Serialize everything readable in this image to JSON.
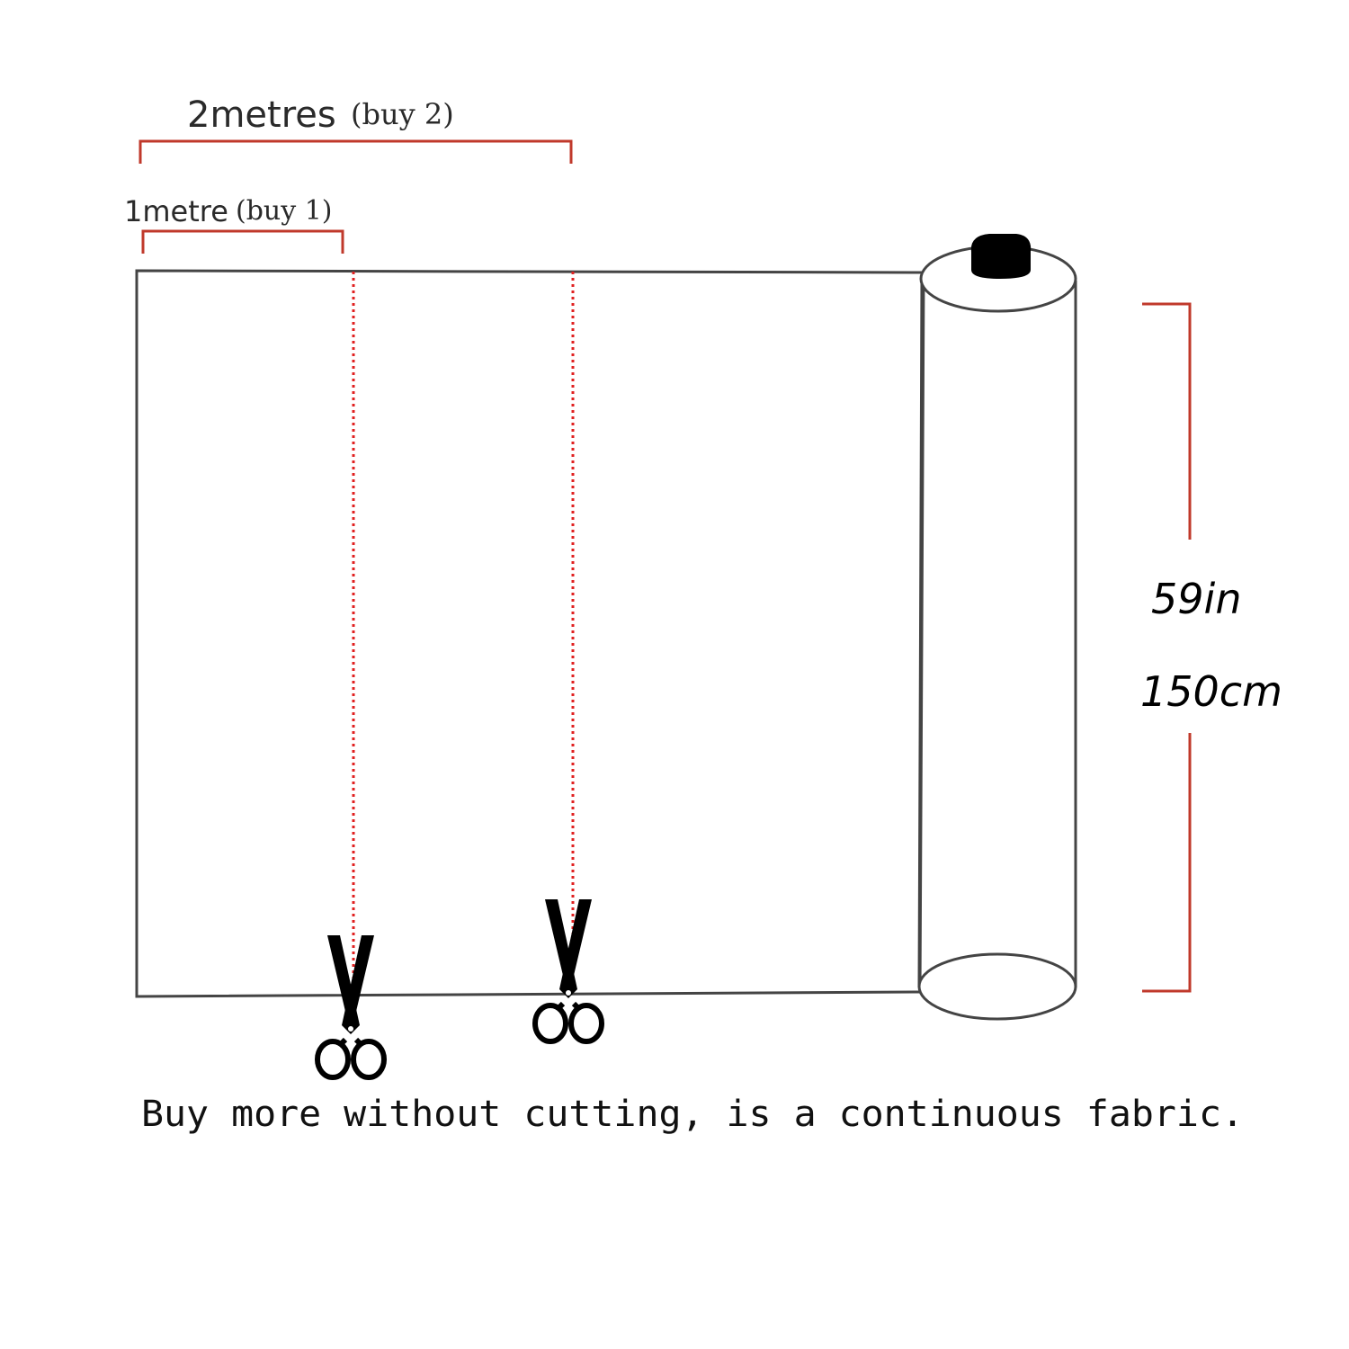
{
  "labels": {
    "two_metres": "2metres",
    "two_metres_buy": "(buy 2)",
    "one_metre": "1metre",
    "one_metre_buy": "(buy 1)",
    "width_in": "59in",
    "width_cm": "150cm",
    "caption": "Buy more without cutting, is a continuous fabric."
  },
  "icons": {
    "cut_marker": "scissors-icon"
  },
  "colors": {
    "dimension_line": "#c0392b",
    "cut_line": "#e02020",
    "outline": "#444444",
    "roll_cap": "#000000"
  }
}
